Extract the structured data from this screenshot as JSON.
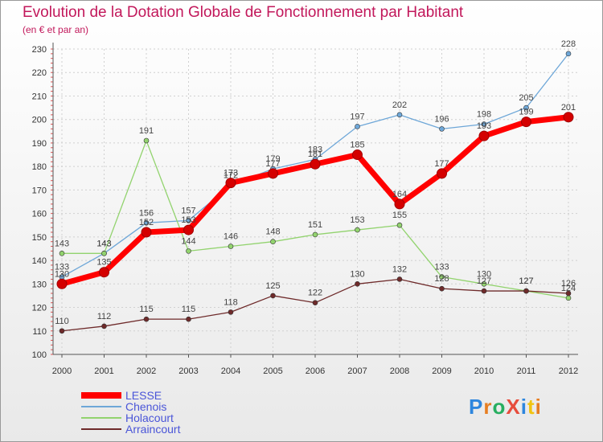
{
  "title": "Evolution de la Dotation Globale de Fonctionnement par Habitant",
  "subtitle": "(en € et par an)",
  "logo": "ProXiti",
  "chart_data": {
    "type": "line",
    "title": "Evolution de la Dotation Globale de Fonctionnement par Habitant",
    "ylabel": "(en € et par an)",
    "xlabel": "",
    "categories": [
      "2000",
      "2001",
      "2002",
      "2003",
      "2004",
      "2005",
      "2006",
      "2007",
      "2008",
      "2009",
      "2010",
      "2011",
      "2012"
    ],
    "ylim": [
      100,
      230
    ],
    "yticks": [
      100,
      110,
      120,
      130,
      140,
      150,
      160,
      170,
      180,
      190,
      200,
      210,
      220,
      230
    ],
    "grid": true,
    "legend_position": "bottom-left",
    "series": [
      {
        "name": "LESSE",
        "color": "#ff0000",
        "values": [
          130,
          135,
          152,
          153,
          173,
          177,
          181,
          185,
          164,
          177,
          193,
          199,
          201
        ]
      },
      {
        "name": "Chenois",
        "color": "#6ea7d8",
        "values": [
          133,
          143,
          156,
          157,
          172,
          179,
          183,
          197,
          202,
          196,
          198,
          205,
          228
        ]
      },
      {
        "name": "Holacourt",
        "color": "#92d36e",
        "values": [
          143,
          143,
          191,
          144,
          146,
          148,
          151,
          153,
          155,
          133,
          130,
          127,
          124
        ]
      },
      {
        "name": "Arraincourt",
        "color": "#6e2a2a",
        "values": [
          110,
          112,
          115,
          115,
          118,
          125,
          122,
          130,
          132,
          128,
          127,
          127,
          126
        ]
      }
    ]
  }
}
